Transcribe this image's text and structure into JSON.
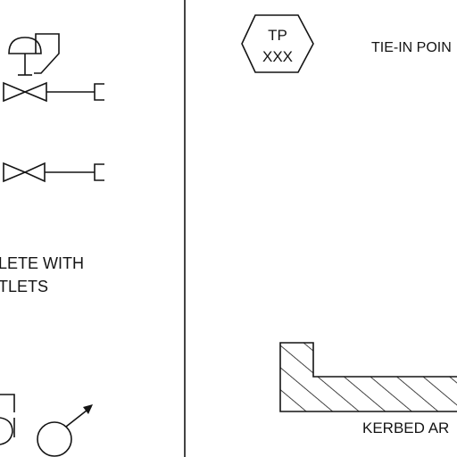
{
  "tie_in": {
    "badge_line1": "TP",
    "badge_line2": "XXX",
    "label": "TIE-IN POIN"
  },
  "legend_text": {
    "line1": "LETE WITH",
    "line2": "TLETS"
  },
  "kerbed": {
    "label": "KERBED AR"
  }
}
